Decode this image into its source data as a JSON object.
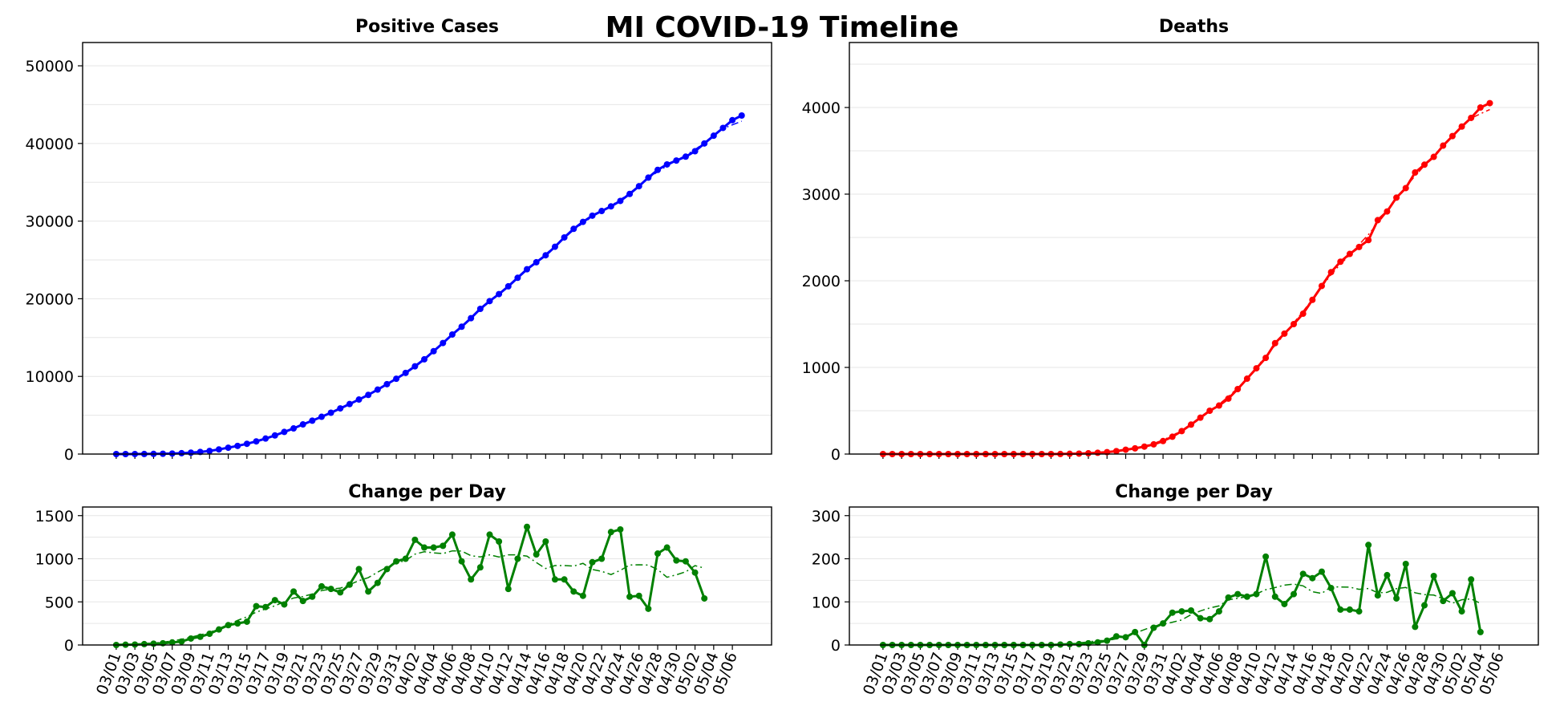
{
  "title": "MI COVID-19 Timeline",
  "chart_data": [
    {
      "id": "cases",
      "type": "line",
      "title": "Positive Cases",
      "xlabel": "",
      "ylabel": "",
      "ylim": [
        0,
        53000
      ],
      "yticks": [
        0,
        10000,
        20000,
        30000,
        40000,
        50000
      ],
      "grid": true,
      "series": [
        {
          "color": "#0000ff",
          "start_date": "03/01",
          "values": [
            0,
            0,
            5,
            10,
            20,
            40,
            70,
            110,
            180,
            270,
            400,
            600,
            820,
            1050,
            1320,
            1630,
            2000,
            2400,
            2850,
            3300,
            3820,
            4300,
            4800,
            5320,
            5880,
            6440,
            7020,
            7620,
            8300,
            9000,
            9700,
            10450,
            11300,
            12200,
            13250,
            14300,
            15400,
            16400,
            17500,
            18700,
            19700,
            20600,
            21600,
            22700,
            23800,
            24700,
            25600,
            26700,
            27900,
            29000,
            29900,
            30700,
            31300,
            31900,
            32600,
            33500,
            34500,
            35600,
            36600,
            37300,
            37800,
            38300,
            39000,
            40000,
            41000,
            42000,
            43000,
            43600
          ]
        }
      ]
    },
    {
      "id": "deaths",
      "type": "line",
      "title": "Deaths",
      "xlabel": "",
      "ylabel": "",
      "ylim": [
        0,
        4750
      ],
      "yticks": [
        0,
        1000,
        2000,
        3000,
        4000
      ],
      "grid": true,
      "series": [
        {
          "color": "#ff0000",
          "start_date": "03/01",
          "values": [
            0,
            0,
            0,
            0,
            0,
            0,
            0,
            0,
            0,
            0,
            0,
            0,
            0,
            0,
            0,
            0,
            0,
            0,
            0,
            1,
            3,
            5,
            9,
            15,
            22,
            34,
            50,
            66,
            86,
            112,
            150,
            200,
            265,
            340,
            420,
            500,
            560,
            640,
            750,
            870,
            990,
            1110,
            1280,
            1390,
            1500,
            1620,
            1780,
            1940,
            2100,
            2220,
            2310,
            2390,
            2470,
            2700,
            2800,
            2960,
            3070,
            3250,
            3340,
            3430,
            3560,
            3670,
            3780,
            3880,
            4000,
            4050
          ]
        }
      ]
    },
    {
      "id": "cases-change",
      "type": "line",
      "title": "Change per Day",
      "xlabel": "",
      "ylabel": "",
      "ylim": [
        0,
        1600
      ],
      "yticks": [
        0,
        500,
        1000,
        1500
      ],
      "grid": true,
      "series": [
        {
          "color": "#008000",
          "start_date": "03/01",
          "values": [
            0,
            3,
            5,
            10,
            15,
            20,
            30,
            40,
            75,
            95,
            130,
            180,
            230,
            250,
            270,
            450,
            440,
            520,
            470,
            620,
            510,
            560,
            680,
            650,
            610,
            700,
            880,
            620,
            720,
            880,
            970,
            1000,
            1220,
            1130,
            1130,
            1150,
            1280,
            970,
            760,
            900,
            1280,
            1200,
            650,
            1000,
            1370,
            1050,
            1200,
            760,
            760,
            620,
            570,
            960,
            1000,
            1310,
            1340,
            560,
            570,
            420,
            1060,
            1130,
            980,
            970,
            840,
            540
          ]
        }
      ]
    },
    {
      "id": "deaths-change",
      "type": "line",
      "title": "Change per Day",
      "xlabel": "",
      "ylabel": "",
      "ylim": [
        0,
        320
      ],
      "yticks": [
        0,
        100,
        200,
        300
      ],
      "grid": true,
      "series": [
        {
          "color": "#008000",
          "start_date": "03/01",
          "values": [
            0,
            0,
            0,
            0,
            0,
            0,
            0,
            0,
            0,
            0,
            0,
            0,
            0,
            0,
            0,
            0,
            0,
            0,
            0,
            1,
            2,
            2,
            4,
            6,
            10,
            20,
            18,
            30,
            0,
            40,
            50,
            75,
            78,
            80,
            62,
            60,
            78,
            110,
            118,
            112,
            118,
            205,
            112,
            95,
            118,
            165,
            155,
            170,
            132,
            82,
            82,
            78,
            232,
            115,
            162,
            108,
            188,
            42,
            92,
            160,
            102,
            120,
            78,
            152,
            30
          ]
        }
      ]
    }
  ],
  "x_tick_labels": [
    "03/01",
    "03/03",
    "03/05",
    "03/07",
    "03/09",
    "03/11",
    "03/13",
    "03/15",
    "03/17",
    "03/19",
    "03/21",
    "03/23",
    "03/25",
    "03/27",
    "03/29",
    "03/31",
    "04/02",
    "04/04",
    "04/06",
    "04/08",
    "04/10",
    "04/12",
    "04/14",
    "04/16",
    "04/18",
    "04/20",
    "04/22",
    "04/24",
    "04/26",
    "04/28",
    "04/30",
    "05/02",
    "05/04",
    "05/06"
  ]
}
